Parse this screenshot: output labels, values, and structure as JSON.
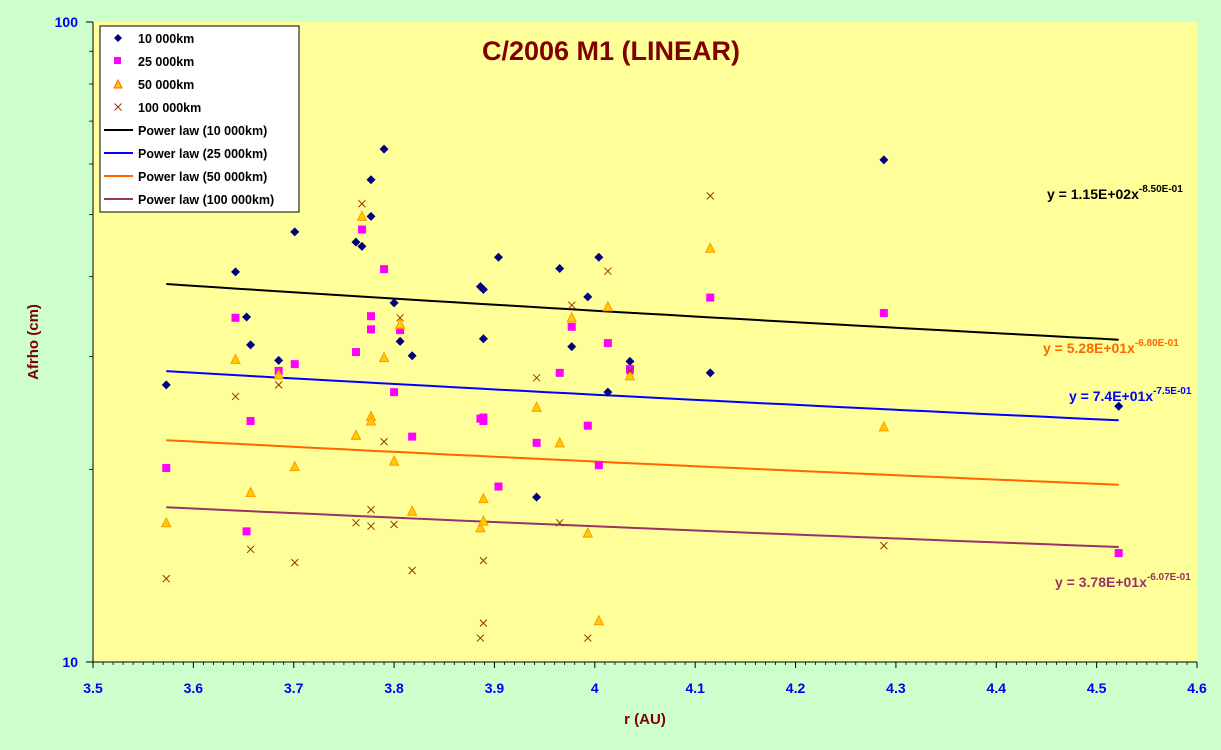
{
  "chart_data": {
    "type": "scatter",
    "title": "C/2006 M1 (LINEAR)",
    "xlabel": "r (AU)",
    "ylabel": "Afrho (cm)",
    "xlim": [
      3.5,
      4.6
    ],
    "ylim": [
      10,
      100
    ],
    "yscale": "log",
    "x_ticks": [
      "3.5",
      "3.6",
      "3.7",
      "3.8",
      "3.9",
      "4",
      "4.1",
      "4.2",
      "4.3",
      "4.4",
      "4.5",
      "4.6"
    ],
    "y_ticks": [
      "10",
      "100"
    ],
    "grid": false,
    "legend_position": "top-left",
    "colors": {
      "page_background": "#ccffcc",
      "plot_background": "#ffff99",
      "series_10000": "#000080",
      "series_25000": "#ff00ff",
      "series_50000": "#ff9900",
      "series_100000": "#993300",
      "fit_10000": "#000000",
      "fit_25000": "#0000ff",
      "fit_50000": "#ff6600",
      "fit_100000": "#993366",
      "eq_10000": "#000000",
      "eq_50000": "#ff6600",
      "eq_25000": "#0000ff",
      "eq_100000": "#993366"
    },
    "series": [
      {
        "name": "10 000km",
        "marker": "diamond",
        "points": [
          [
            3.573,
            27.1
          ],
          [
            3.642,
            40.7
          ],
          [
            3.653,
            34.6
          ],
          [
            3.657,
            31.3
          ],
          [
            3.685,
            29.6
          ],
          [
            3.701,
            47.0
          ],
          [
            3.762,
            45.3
          ],
          [
            3.768,
            44.6
          ],
          [
            3.777,
            49.7
          ],
          [
            3.777,
            56.7
          ],
          [
            3.79,
            63.3
          ],
          [
            3.8,
            36.4
          ],
          [
            3.806,
            31.7
          ],
          [
            3.818,
            30.1
          ],
          [
            3.886,
            38.6
          ],
          [
            3.889,
            38.2
          ],
          [
            3.889,
            32.0
          ],
          [
            3.904,
            42.9
          ],
          [
            3.942,
            18.1
          ],
          [
            3.965,
            41.2
          ],
          [
            3.977,
            31.1
          ],
          [
            3.993,
            37.2
          ],
          [
            4.004,
            42.9
          ],
          [
            4.013,
            26.4
          ],
          [
            4.035,
            29.5
          ],
          [
            4.115,
            28.3
          ],
          [
            4.288,
            60.9
          ],
          [
            4.522,
            25.1
          ]
        ]
      },
      {
        "name": "25 000km",
        "marker": "square",
        "points": [
          [
            3.573,
            20.1
          ],
          [
            3.642,
            34.5
          ],
          [
            3.653,
            16.0
          ],
          [
            3.657,
            23.8
          ],
          [
            3.685,
            28.5
          ],
          [
            3.701,
            29.2
          ],
          [
            3.762,
            30.5
          ],
          [
            3.768,
            47.4
          ],
          [
            3.777,
            34.7
          ],
          [
            3.777,
            33.1
          ],
          [
            3.79,
            41.1
          ],
          [
            3.8,
            26.4
          ],
          [
            3.806,
            33.0
          ],
          [
            3.818,
            22.5
          ],
          [
            3.886,
            24.0
          ],
          [
            3.889,
            24.1
          ],
          [
            3.889,
            23.8
          ],
          [
            3.904,
            18.8
          ],
          [
            3.942,
            22.0
          ],
          [
            3.965,
            28.3
          ],
          [
            3.977,
            33.4
          ],
          [
            3.993,
            23.4
          ],
          [
            4.004,
            20.3
          ],
          [
            4.013,
            31.5
          ],
          [
            4.035,
            28.7
          ],
          [
            4.115,
            37.1
          ],
          [
            4.288,
            35.1
          ],
          [
            4.522,
            14.8
          ]
        ]
      },
      {
        "name": "50 000km",
        "marker": "triangle",
        "points": [
          [
            3.573,
            16.5
          ],
          [
            3.642,
            29.7
          ],
          [
            3.657,
            18.4
          ],
          [
            3.685,
            28.1
          ],
          [
            3.701,
            20.2
          ],
          [
            3.762,
            22.6
          ],
          [
            3.768,
            49.7
          ],
          [
            3.777,
            24.2
          ],
          [
            3.777,
            23.8
          ],
          [
            3.79,
            29.9
          ],
          [
            3.8,
            20.6
          ],
          [
            3.806,
            33.7
          ],
          [
            3.818,
            17.2
          ],
          [
            3.886,
            16.2
          ],
          [
            3.889,
            16.6
          ],
          [
            3.889,
            18.0
          ],
          [
            3.942,
            25.0
          ],
          [
            3.965,
            22.0
          ],
          [
            3.977,
            34.5
          ],
          [
            3.993,
            15.9
          ],
          [
            4.004,
            11.6
          ],
          [
            4.013,
            35.9
          ],
          [
            4.035,
            28.0
          ],
          [
            4.115,
            44.3
          ],
          [
            4.288,
            23.3
          ]
        ]
      },
      {
        "name": "100 000km",
        "marker": "x",
        "points": [
          [
            3.573,
            13.5
          ],
          [
            3.642,
            26.0
          ],
          [
            3.657,
            15.0
          ],
          [
            3.685,
            27.1
          ],
          [
            3.701,
            14.3
          ],
          [
            3.762,
            16.5
          ],
          [
            3.768,
            52.0
          ],
          [
            3.777,
            17.3
          ],
          [
            3.777,
            16.3
          ],
          [
            3.79,
            22.1
          ],
          [
            3.8,
            16.4
          ],
          [
            3.806,
            34.5
          ],
          [
            3.818,
            13.9
          ],
          [
            3.886,
            10.9
          ],
          [
            3.889,
            11.5
          ],
          [
            3.889,
            14.4
          ],
          [
            3.942,
            27.8
          ],
          [
            3.965,
            16.5
          ],
          [
            3.977,
            36.1
          ],
          [
            3.993,
            10.9
          ],
          [
            4.013,
            40.8
          ],
          [
            4.035,
            28.5
          ],
          [
            4.115,
            53.5
          ],
          [
            4.288,
            15.2
          ]
        ]
      }
    ],
    "fits": [
      {
        "name": "Power law (10 000km)",
        "a": 115,
        "b": -0.85,
        "x_range": [
          3.573,
          4.522
        ],
        "equation": "y = 1.15E+02x",
        "exponent": "-8.50E-01"
      },
      {
        "name": "Power law (25 000km)",
        "a": 74,
        "b": -0.75,
        "x_range": [
          3.573,
          4.522
        ],
        "equation": "y = 7.4E+01x",
        "exponent": "-7.5E-01"
      },
      {
        "name": "Power law (50 000km)",
        "a": 52.8,
        "b": -0.68,
        "x_range": [
          3.573,
          4.522
        ],
        "equation": "y = 5.28E+01x",
        "exponent": "-6.80E-01"
      },
      {
        "name": "Power law (100 000km)",
        "a": 37.8,
        "b": -0.607,
        "x_range": [
          3.573,
          4.522
        ],
        "equation": "y = 3.78E+01x",
        "exponent": "-6.07E-01"
      }
    ]
  }
}
